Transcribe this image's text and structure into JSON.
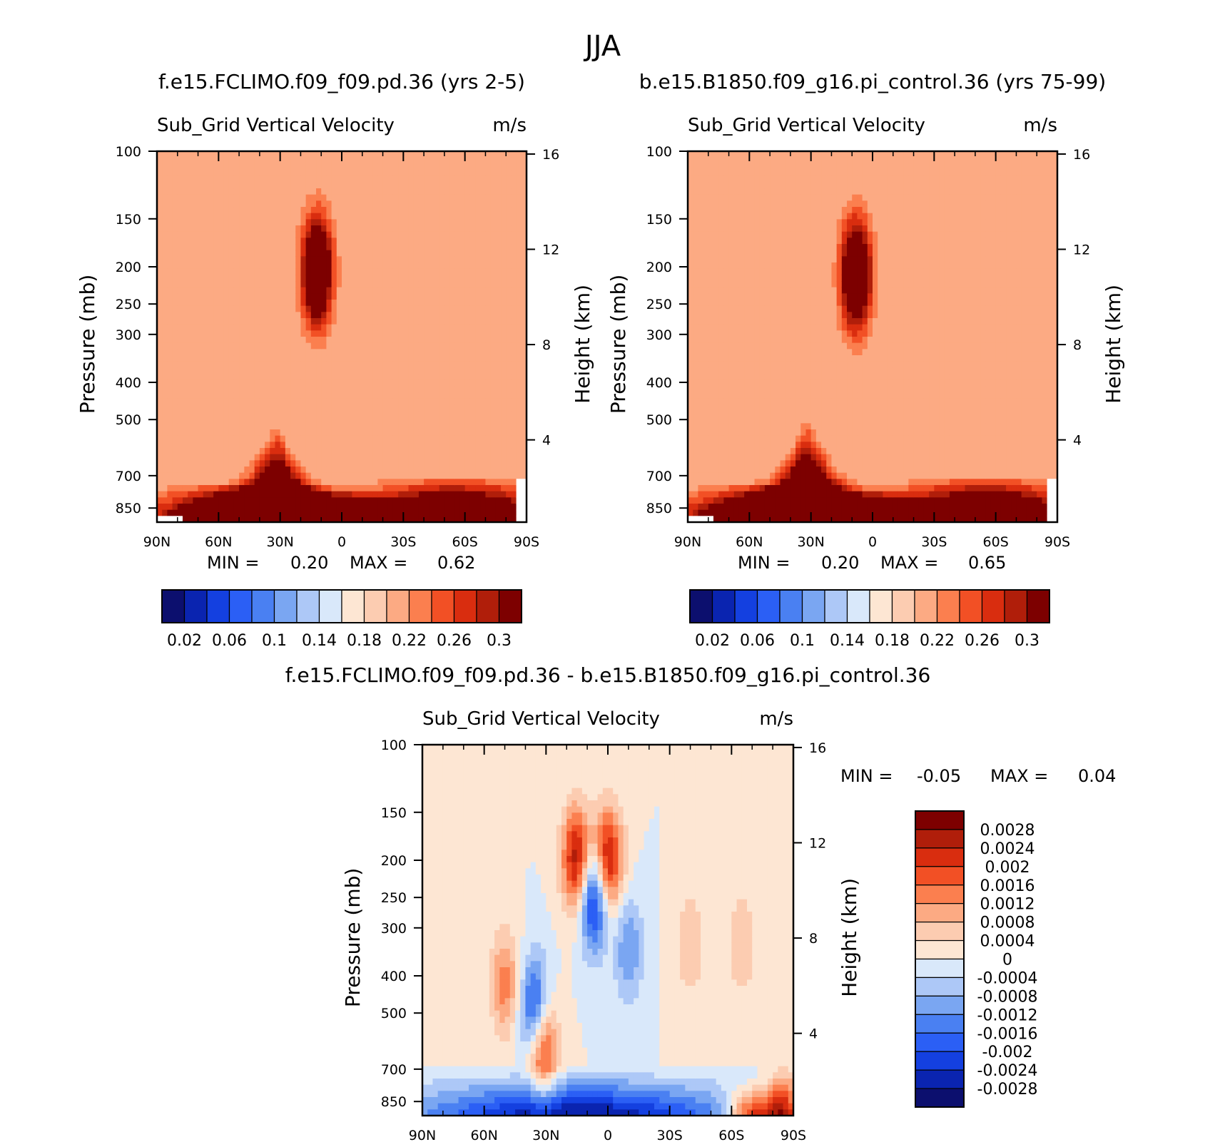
{
  "figure": {
    "season_title": "JJA",
    "variable": "Sub_Grid Vertical Velocity",
    "units": "m/s"
  },
  "chart_data": [
    {
      "type": "heatmap",
      "id": "panel-a",
      "title": "f.e15.FCLIMO.f09_f09.pd.36 (yrs 2-5)",
      "subtitle": "Sub_Grid Vertical Velocity",
      "units": "m/s",
      "xlabel": "",
      "ylabel": "Pressure (mb)",
      "y2label": "Height (km)",
      "x_ticks": [
        "90N",
        "60N",
        "30N",
        "0",
        "30S",
        "60S",
        "90S"
      ],
      "y_ticks": [
        100,
        150,
        200,
        250,
        300,
        400,
        500,
        700,
        850
      ],
      "y2_ticks": [
        16,
        12,
        8,
        4
      ],
      "xlim": [
        90,
        -90
      ],
      "ylim": [
        100,
        925
      ],
      "min_label": "MIN =",
      "min_value": "0.20",
      "max_label": "MAX =",
      "max_value": "0.62",
      "background_level": 0.2,
      "features": [
        {
          "kind": "band",
          "center_lat": -55,
          "width_lat": 28,
          "top_p": 690,
          "amp": 0.26
        },
        {
          "kind": "band",
          "center_lat": 0,
          "width_lat": 12,
          "top_p": 760,
          "amp": 0.22
        },
        {
          "kind": "peak",
          "center_lat": 32,
          "width_lat": 18,
          "top_p": 500,
          "amp": 0.3
        },
        {
          "kind": "band",
          "center_lat": 45,
          "width_lat": 28,
          "top_p": 720,
          "amp": 0.3
        },
        {
          "kind": "blob",
          "center_lat": 12,
          "p": 205,
          "amp": 0.22
        }
      ]
    },
    {
      "type": "heatmap",
      "id": "panel-b",
      "title": "b.e15.B1850.f09_g16.pi_control.36 (yrs 75-99)",
      "subtitle": "Sub_Grid Vertical Velocity",
      "units": "m/s",
      "xlabel": "",
      "ylabel": "Pressure (mb)",
      "y2label": "Height (km)",
      "x_ticks": [
        "90N",
        "60N",
        "30N",
        "0",
        "30S",
        "60S",
        "90S"
      ],
      "y_ticks": [
        100,
        150,
        200,
        250,
        300,
        400,
        500,
        700,
        850
      ],
      "y2_ticks": [
        16,
        12,
        8,
        4
      ],
      "xlim": [
        90,
        -90
      ],
      "ylim": [
        100,
        925
      ],
      "min_label": "MIN =",
      "min_value": "0.20",
      "max_label": "MAX =",
      "max_value": "0.65",
      "background_level": 0.2,
      "features": [
        {
          "kind": "band",
          "center_lat": -55,
          "width_lat": 28,
          "top_p": 690,
          "amp": 0.27
        },
        {
          "kind": "band",
          "center_lat": 0,
          "width_lat": 12,
          "top_p": 760,
          "amp": 0.22
        },
        {
          "kind": "peak",
          "center_lat": 32,
          "width_lat": 18,
          "top_p": 480,
          "amp": 0.3
        },
        {
          "kind": "band",
          "center_lat": 45,
          "width_lat": 28,
          "top_p": 720,
          "amp": 0.3
        },
        {
          "kind": "blob",
          "center_lat": 8,
          "p": 210,
          "amp": 0.22
        }
      ]
    },
    {
      "type": "heatmap",
      "id": "panel-diff",
      "title": "f.e15.FCLIMO.f09_f09.pd.36 - b.e15.B1850.f09_g16.pi_control.36",
      "subtitle": "Sub_Grid Vertical Velocity",
      "units": "m/s",
      "xlabel": "",
      "ylabel": "Pressure (mb)",
      "y2label": "Height (km)",
      "x_ticks": [
        "90N",
        "60N",
        "30N",
        "0",
        "30S",
        "60S",
        "90S"
      ],
      "y_ticks": [
        100,
        150,
        200,
        250,
        300,
        400,
        500,
        700,
        850
      ],
      "y2_ticks": [
        16,
        12,
        8,
        4
      ],
      "xlim": [
        90,
        -90
      ],
      "ylim": [
        100,
        925
      ],
      "min_label": "MIN =",
      "min_value": "-0.05",
      "max_label": "MAX =",
      "max_value": "0.04",
      "features": [
        {
          "kind": "blob",
          "center_lat": 15,
          "p": 200,
          "amp": 0.0028
        },
        {
          "kind": "blob",
          "center_lat": 0,
          "p": 200,
          "amp": 0.0028
        },
        {
          "kind": "blob",
          "center_lat": 7,
          "p": 250,
          "amp": -0.0028
        },
        {
          "kind": "blob",
          "center_lat": -10,
          "p": 340,
          "amp": -0.0012
        },
        {
          "kind": "blob",
          "center_lat": 50,
          "p": 420,
          "amp": 0.0014
        },
        {
          "kind": "blob",
          "center_lat": 32,
          "p": 600,
          "amp": 0.0028
        },
        {
          "kind": "blob",
          "center_lat": 35,
          "p": 500,
          "amp": -0.0028
        },
        {
          "kind": "blob",
          "center_lat": -40,
          "p": 330,
          "amp": 0.0008
        },
        {
          "kind": "blob",
          "center_lat": -65,
          "p": 330,
          "amp": 0.0008
        },
        {
          "kind": "band",
          "center_lat": 15,
          "width_lat": 55,
          "top_p": 690,
          "amp": -0.0028
        },
        {
          "kind": "band",
          "center_lat": -70,
          "width_lat": 8,
          "top_p": 740,
          "amp": 0.0028
        },
        {
          "kind": "band",
          "center_lat": -85,
          "width_lat": 6,
          "top_p": 660,
          "amp": 0.0028
        }
      ]
    }
  ],
  "colorbars": {
    "panels_ab": {
      "colors": [
        "#0c0f6e",
        "#0a24b0",
        "#1440e0",
        "#2b5ff5",
        "#4a80f2",
        "#7aa6f2",
        "#adc8f7",
        "#d9e8fa",
        "#fde6d3",
        "#fcccb1",
        "#fcaa83",
        "#fb7f4f",
        "#f25025",
        "#d92d0f",
        "#b01e0a",
        "#7d0000"
      ],
      "labels": [
        "0.02",
        "0.06",
        "0.1",
        "0.14",
        "0.18",
        "0.22",
        "0.26",
        "0.3"
      ],
      "levels": [
        0.02,
        0.04,
        0.06,
        0.08,
        0.1,
        0.12,
        0.14,
        0.16,
        0.18,
        0.2,
        0.22,
        0.24,
        0.26,
        0.28,
        0.3
      ]
    },
    "diff": {
      "colors": [
        "#7d0000",
        "#b01e0a",
        "#d92d0f",
        "#f25025",
        "#fb7f4f",
        "#fcaa83",
        "#fcccb1",
        "#fde6d3",
        "#d9e8fa",
        "#adc8f7",
        "#7aa6f2",
        "#4a80f2",
        "#2b5ff5",
        "#1440e0",
        "#0a24b0",
        "#0c0f6e"
      ],
      "labels": [
        "0.0028",
        "0.0024",
        "0.002",
        "0.0016",
        "0.0012",
        "0.0008",
        "0.0004",
        "0",
        "-0.0004",
        "-0.0008",
        "-0.0012",
        "-0.0016",
        "-0.002",
        "-0.0024",
        "-0.0028"
      ],
      "levels": [
        0.0028,
        0.0024,
        0.002,
        0.0016,
        0.0012,
        0.0008,
        0.0004,
        0,
        -0.0004,
        -0.0008,
        -0.0012,
        -0.0016,
        -0.002,
        -0.0024,
        -0.0028
      ]
    }
  }
}
